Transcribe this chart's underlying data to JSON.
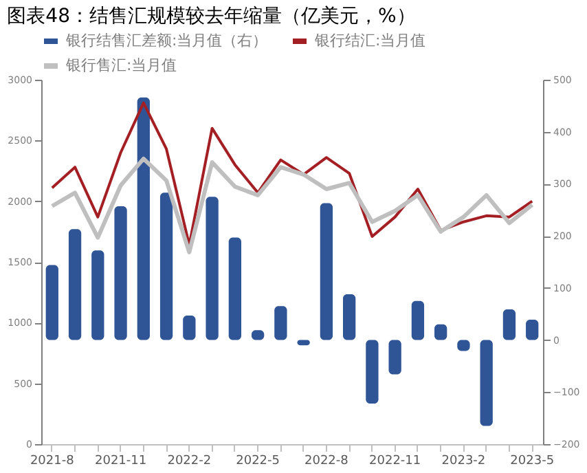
{
  "chart_data": {
    "type": "bar",
    "title": "图表48：结售汇规模较去年缩量（亿美元，%）",
    "categories": [
      "2021-8",
      null,
      null,
      "2021-11",
      null,
      null,
      "2022-2",
      null,
      null,
      "2022-5",
      null,
      null,
      "2022-8",
      null,
      null,
      "2022-11",
      null,
      null,
      "2023-2",
      null,
      null,
      "2023-5"
    ],
    "series": [
      {
        "name": "银行结售汇差额:当月值（右）",
        "axis": "y2",
        "color": "#2f5597",
        "values": [
          144,
          213,
          172,
          257,
          466,
          283,
          47,
          275,
          197,
          19,
          65,
          -10,
          263,
          88,
          -122,
          -66,
          75,
          30,
          -21,
          -165,
          59,
          39
        ]
      },
      {
        "name": "银行结汇:当月值",
        "type": "line",
        "color": "#a31f24",
        "values": [
          2110,
          2280,
          1870,
          2400,
          2810,
          2430,
          1640,
          2600,
          2300,
          2070,
          2340,
          2220,
          2360,
          2230,
          1710,
          1870,
          2100,
          1760,
          1830,
          1880,
          1870,
          2000
        ]
      },
      {
        "name": "银行售汇:当月值",
        "type": "line",
        "color": "#bfbfbf",
        "values": [
          1960,
          2070,
          1700,
          2130,
          2350,
          2170,
          1580,
          2320,
          2120,
          2050,
          2280,
          2220,
          2100,
          2150,
          1830,
          1920,
          2050,
          1750,
          1870,
          2050,
          1820,
          1970
        ]
      }
    ],
    "ylim": [
      0,
      3000
    ],
    "yticks": [
      0,
      500,
      1000,
      1500,
      2000,
      2500,
      3000
    ],
    "y2lim": [
      -200,
      500
    ],
    "y2ticks": [
      -200,
      -100,
      0,
      100,
      200,
      300,
      400,
      500
    ],
    "grid": false,
    "legend": "top"
  }
}
